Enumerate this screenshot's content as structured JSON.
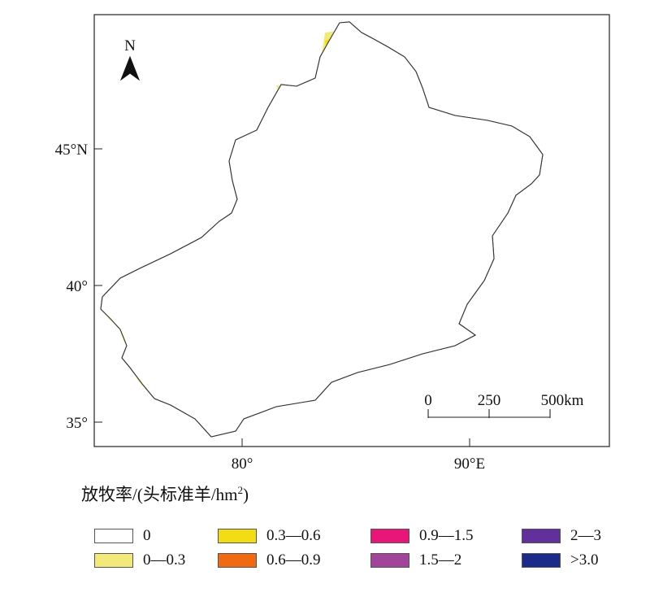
{
  "map": {
    "latitude_ticks": [
      "45°N",
      "40°",
      "35°"
    ],
    "longitude_ticks": [
      "80°",
      "90°E"
    ],
    "north_arrow": {
      "label": "N",
      "icon": "north-arrow-icon"
    },
    "scale_bar": {
      "labels": [
        "0",
        "250",
        "500km"
      ]
    }
  },
  "legend": {
    "title_main": "放牧率/(头标准羊/hm",
    "title_sup": "2",
    "title_tail": ")",
    "items": [
      {
        "label": "0",
        "color": "#ffffff"
      },
      {
        "label": "0—0.3",
        "color": "#f3e97a"
      },
      {
        "label": "0.3—0.6",
        "color": "#f2dc14"
      },
      {
        "label": "0.6—0.9",
        "color": "#ef6a10"
      },
      {
        "label": "0.9—1.5",
        "color": "#e9167a"
      },
      {
        "label": "1.5—2",
        "color": "#a1459a"
      },
      {
        "label": "2—3",
        "color": "#61309a"
      },
      {
        "label": ">3.0",
        "color": "#1c2a8a"
      }
    ]
  }
}
